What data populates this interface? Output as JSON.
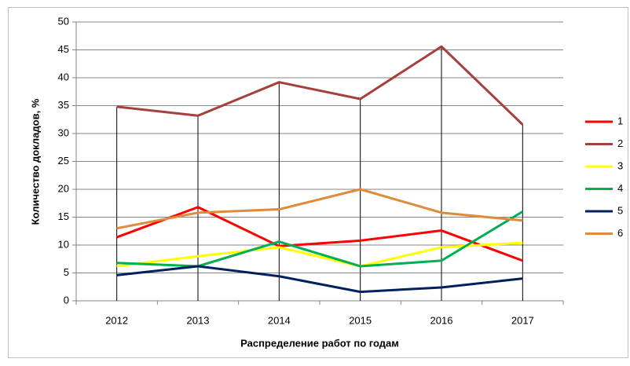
{
  "chart_data": {
    "type": "line",
    "x_label": "Распределение работ по годам",
    "y_label": "Количество  докладов, %",
    "categories": [
      "2012",
      "2013",
      "2014",
      "2015",
      "2016",
      "2017"
    ],
    "series": [
      {
        "name": "1",
        "color": "#ff0000",
        "values": [
          11.4,
          16.8,
          9.8,
          10.8,
          12.6,
          7.2
        ]
      },
      {
        "name": "2",
        "color": "#a5403d",
        "values": [
          34.8,
          33.2,
          39.2,
          36.2,
          45.6,
          31.6
        ]
      },
      {
        "name": "3",
        "color": "#ffff00",
        "values": [
          6.2,
          8.0,
          9.6,
          6.2,
          9.6,
          10.4
        ]
      },
      {
        "name": "4",
        "color": "#00b050",
        "values": [
          6.8,
          6.2,
          10.6,
          6.2,
          7.2,
          16.0
        ]
      },
      {
        "name": "5",
        "color": "#002060",
        "values": [
          4.6,
          6.2,
          4.4,
          1.6,
          2.4,
          4.0
        ]
      },
      {
        "name": "6",
        "color": "#e08a3c",
        "values": [
          13.0,
          15.8,
          16.4,
          20.0,
          15.8,
          14.4
        ]
      }
    ],
    "ylim": [
      0,
      50
    ],
    "yticks": [
      0,
      5,
      10,
      15,
      20,
      25,
      30,
      35,
      40,
      45,
      50
    ],
    "grid": true,
    "legend": "right"
  }
}
